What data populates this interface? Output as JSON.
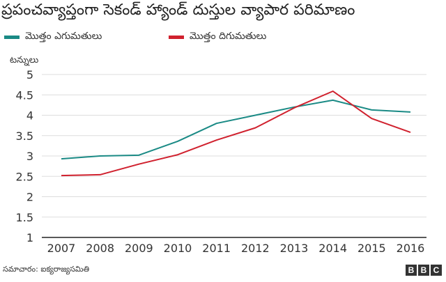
{
  "title": "ప్రపంచవ్యాప్తంగా సెకండ్ హ్యాండ్ దుస్తుల వ్యాపార పరిమాణం",
  "source": "సమాచారం: ఐక్యరాజ్యసమితి",
  "logo_letters": [
    "B",
    "B",
    "C"
  ],
  "colors": {
    "exports": "#1a8a85",
    "imports": "#d0212e",
    "grid": "#dddddd",
    "axis": "#222222"
  },
  "chart_data": {
    "type": "line",
    "title": "ప్రపంచవ్యాప్తంగా సెకండ్ హ్యాండ్ దుస్తుల వ్యాపార పరిమాణం",
    "ylabel": "టన్నులు",
    "xlabel": "",
    "x": [
      "2007",
      "2008",
      "2009",
      "2010",
      "2011",
      "2012",
      "2013",
      "2014",
      "2015",
      "2016"
    ],
    "ylim": [
      1,
      5
    ],
    "yticks": [
      "1",
      "1.5",
      "2",
      "2.5",
      "3",
      "3.5",
      "4",
      "4.5",
      "5"
    ],
    "grid": true,
    "legend_position": "top-left",
    "series": [
      {
        "name": "మొత్తం ఎగుమతులు",
        "color": "#1a8a85",
        "values": [
          2.93,
          3.0,
          3.02,
          3.36,
          3.8,
          4.0,
          4.2,
          4.37,
          4.13,
          4.08
        ]
      },
      {
        "name": "మొత్తం దిగుమతులు",
        "color": "#d0212e",
        "values": [
          2.52,
          2.54,
          2.8,
          3.03,
          3.39,
          3.69,
          4.18,
          4.59,
          3.92,
          3.58
        ]
      }
    ]
  }
}
